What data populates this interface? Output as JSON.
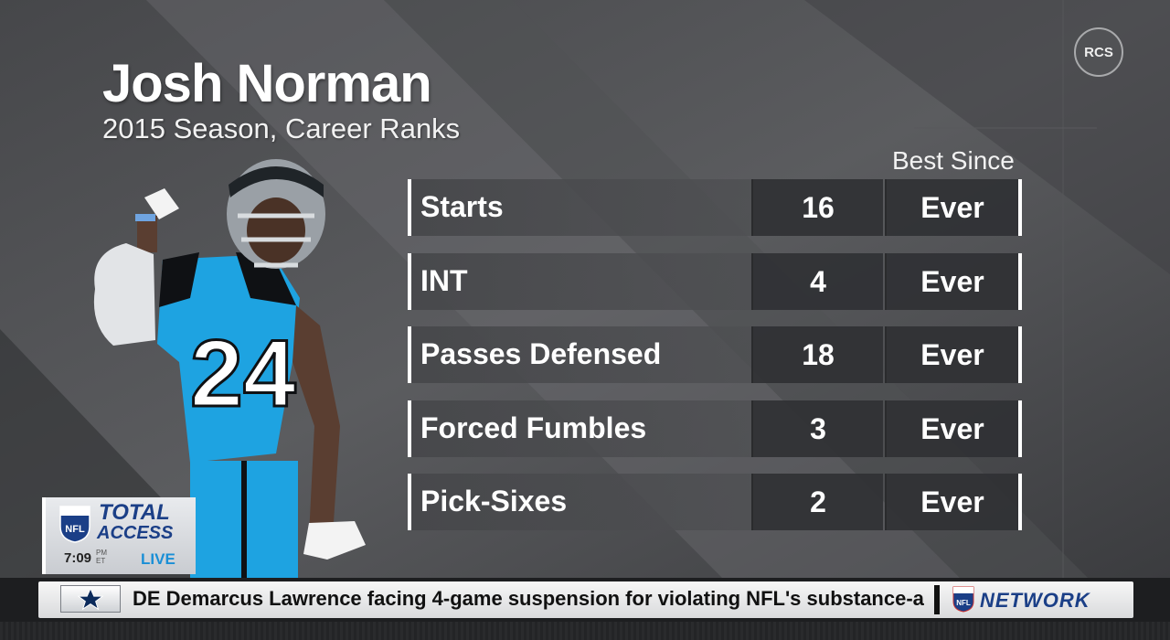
{
  "header": {
    "player_name": "Josh Norman",
    "subtitle": "2015 Season, Career Ranks",
    "column_header": "Best Since",
    "network_badge": "RCS"
  },
  "stats": [
    {
      "label": "Starts",
      "value": "16",
      "best_since": "Ever"
    },
    {
      "label": "INT",
      "value": "4",
      "best_since": "Ever"
    },
    {
      "label": "Passes Defensed",
      "value": "18",
      "best_since": "Ever"
    },
    {
      "label": "Forced Fumbles",
      "value": "3",
      "best_since": "Ever"
    },
    {
      "label": "Pick-Sixes",
      "value": "2",
      "best_since": "Ever"
    }
  ],
  "player": {
    "jersey_number": "24",
    "team_color": "#1ea3e1"
  },
  "show_bug": {
    "title_line1": "TOTAL",
    "title_line2": "ACCESS",
    "time": "7:09",
    "time_suffix_top": "PM",
    "time_suffix_bottom": "ET",
    "status": "LIVE",
    "logo_icon": "nfl-shield-icon"
  },
  "ticker": {
    "team_icon": "cowboys-star-icon",
    "headline": "DE Demarcus Lawrence facing 4-game suspension for violating NFL's substance-a",
    "network_name": "NETWORK",
    "network_icon": "nfl-shield-icon"
  },
  "colors": {
    "background": "#3a3b3d",
    "accent_blue": "#1b3f87",
    "live_blue": "#1a8fd6"
  }
}
